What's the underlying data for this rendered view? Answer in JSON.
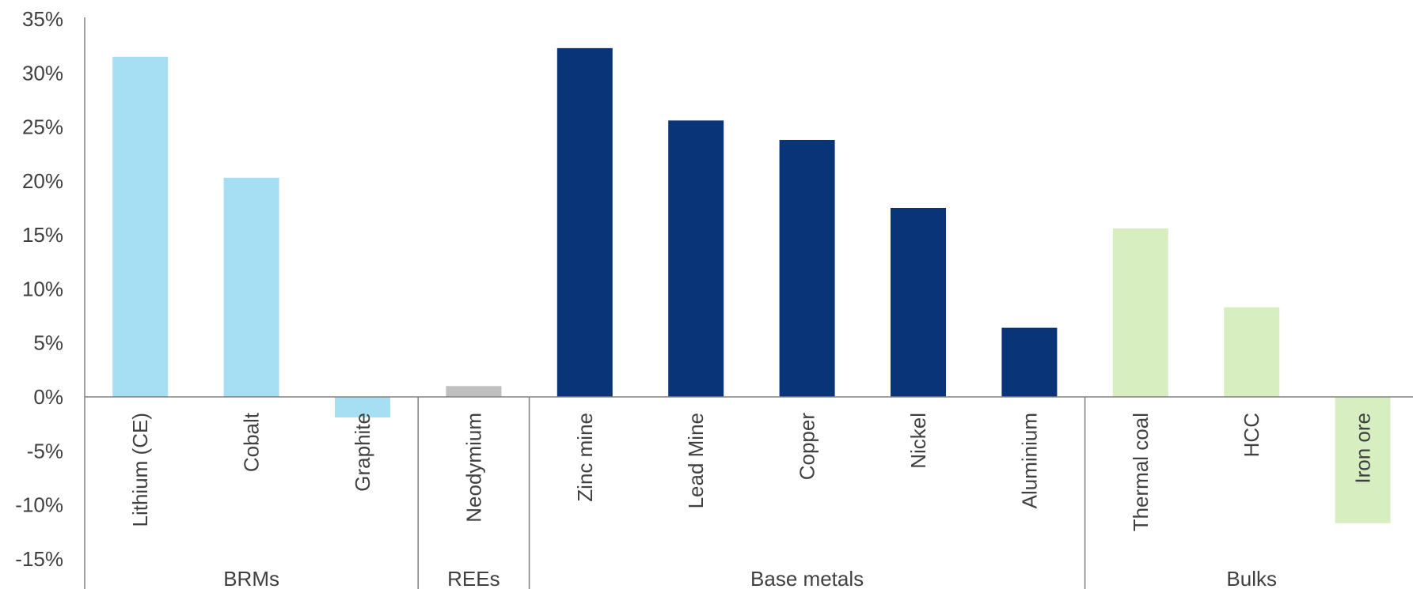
{
  "chart_data": {
    "type": "bar",
    "title": "",
    "xlabel": "",
    "ylabel": "",
    "ylim": [
      -15,
      35
    ],
    "yticks": [
      35,
      30,
      25,
      20,
      15,
      10,
      5,
      0,
      -5,
      -10,
      -15
    ],
    "ytick_labels": [
      "35%",
      "30%",
      "25%",
      "20%",
      "15%",
      "10%",
      "5%",
      "0%",
      "-5%",
      "-10%",
      "-15%"
    ],
    "grid": false,
    "legend": "none",
    "categories": [
      "Lithium (CE)",
      "Cobalt",
      "Graphite",
      "Neodymium",
      "Zinc mine",
      "Lead Mine",
      "Copper",
      "Nickel",
      "Aluminium",
      "Thermal coal",
      "HCC",
      "Iron ore"
    ],
    "values": [
      31.5,
      20.3,
      -1.9,
      1.0,
      32.3,
      25.6,
      23.8,
      17.5,
      6.4,
      15.6,
      8.3,
      -11.7
    ],
    "groups": [
      {
        "label": "BRMs",
        "categories": [
          "Lithium (CE)",
          "Cobalt",
          "Graphite"
        ],
        "color": "#a6dff3"
      },
      {
        "label": "REEs",
        "categories": [
          "Neodymium"
        ],
        "color": "#bfbfbf"
      },
      {
        "label": "Base metals",
        "categories": [
          "Zinc mine",
          "Lead Mine",
          "Copper",
          "Nickel",
          "Aluminium"
        ],
        "color": "#0a3478"
      },
      {
        "label": "Bulks",
        "categories": [
          "Thermal coal",
          "HCC",
          "Iron ore"
        ],
        "color": "#d7eec1"
      }
    ]
  }
}
